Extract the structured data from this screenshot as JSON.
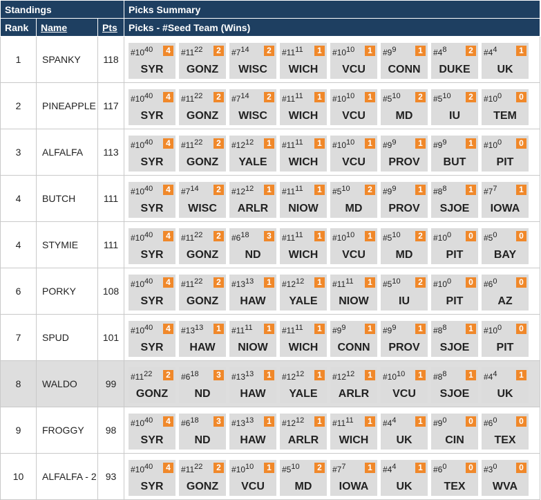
{
  "header": {
    "standings": "Standings",
    "picks_summary": "Picks Summary",
    "rank": "Rank",
    "name": "Name",
    "pts": "Pts",
    "picks_label": "Picks - #Seed Team (Wins)"
  },
  "colors": {
    "header_bg": "#1e3f61",
    "badge": "#f0882a",
    "tile": "#dcdcdc",
    "highlight_row": "#dedede"
  },
  "rows": [
    {
      "rank": "1",
      "name": "SPANKY",
      "pts": "118",
      "picks": [
        {
          "seed": "#10",
          "total": "40",
          "wins": "4",
          "team": "SYR"
        },
        {
          "seed": "#11",
          "total": "22",
          "wins": "2",
          "team": "GONZ"
        },
        {
          "seed": "#7",
          "total": "14",
          "wins": "2",
          "team": "WISC"
        },
        {
          "seed": "#11",
          "total": "11",
          "wins": "1",
          "team": "WICH"
        },
        {
          "seed": "#10",
          "total": "10",
          "wins": "1",
          "team": "VCU"
        },
        {
          "seed": "#9",
          "total": "9",
          "wins": "1",
          "team": "CONN"
        },
        {
          "seed": "#4",
          "total": "8",
          "wins": "2",
          "team": "DUKE"
        },
        {
          "seed": "#4",
          "total": "4",
          "wins": "1",
          "team": "UK"
        }
      ]
    },
    {
      "rank": "2",
      "name": "PINEAPPLE",
      "pts": "117",
      "picks": [
        {
          "seed": "#10",
          "total": "40",
          "wins": "4",
          "team": "SYR"
        },
        {
          "seed": "#11",
          "total": "22",
          "wins": "2",
          "team": "GONZ"
        },
        {
          "seed": "#7",
          "total": "14",
          "wins": "2",
          "team": "WISC"
        },
        {
          "seed": "#11",
          "total": "11",
          "wins": "1",
          "team": "WICH"
        },
        {
          "seed": "#10",
          "total": "10",
          "wins": "1",
          "team": "VCU"
        },
        {
          "seed": "#5",
          "total": "10",
          "wins": "2",
          "team": "MD"
        },
        {
          "seed": "#5",
          "total": "10",
          "wins": "2",
          "team": "IU"
        },
        {
          "seed": "#10",
          "total": "0",
          "wins": "0",
          "team": "TEM"
        }
      ]
    },
    {
      "rank": "3",
      "name": "ALFALFA",
      "pts": "113",
      "picks": [
        {
          "seed": "#10",
          "total": "40",
          "wins": "4",
          "team": "SYR"
        },
        {
          "seed": "#11",
          "total": "22",
          "wins": "2",
          "team": "GONZ"
        },
        {
          "seed": "#12",
          "total": "12",
          "wins": "1",
          "team": "YALE"
        },
        {
          "seed": "#11",
          "total": "11",
          "wins": "1",
          "team": "WICH"
        },
        {
          "seed": "#10",
          "total": "10",
          "wins": "1",
          "team": "VCU"
        },
        {
          "seed": "#9",
          "total": "9",
          "wins": "1",
          "team": "PROV"
        },
        {
          "seed": "#9",
          "total": "9",
          "wins": "1",
          "team": "BUT"
        },
        {
          "seed": "#10",
          "total": "0",
          "wins": "0",
          "team": "PIT"
        }
      ]
    },
    {
      "rank": "4",
      "name": "BUTCH",
      "pts": "111",
      "picks": [
        {
          "seed": "#10",
          "total": "40",
          "wins": "4",
          "team": "SYR"
        },
        {
          "seed": "#7",
          "total": "14",
          "wins": "2",
          "team": "WISC"
        },
        {
          "seed": "#12",
          "total": "12",
          "wins": "1",
          "team": "ARLR"
        },
        {
          "seed": "#11",
          "total": "11",
          "wins": "1",
          "team": "NIOW"
        },
        {
          "seed": "#5",
          "total": "10",
          "wins": "2",
          "team": "MD"
        },
        {
          "seed": "#9",
          "total": "9",
          "wins": "1",
          "team": "PROV"
        },
        {
          "seed": "#8",
          "total": "8",
          "wins": "1",
          "team": "SJOE"
        },
        {
          "seed": "#7",
          "total": "7",
          "wins": "1",
          "team": "IOWA"
        }
      ]
    },
    {
      "rank": "4",
      "name": "STYMIE",
      "pts": "111",
      "picks": [
        {
          "seed": "#10",
          "total": "40",
          "wins": "4",
          "team": "SYR"
        },
        {
          "seed": "#11",
          "total": "22",
          "wins": "2",
          "team": "GONZ"
        },
        {
          "seed": "#6",
          "total": "18",
          "wins": "3",
          "team": "ND"
        },
        {
          "seed": "#11",
          "total": "11",
          "wins": "1",
          "team": "WICH"
        },
        {
          "seed": "#10",
          "total": "10",
          "wins": "1",
          "team": "VCU"
        },
        {
          "seed": "#5",
          "total": "10",
          "wins": "2",
          "team": "MD"
        },
        {
          "seed": "#10",
          "total": "0",
          "wins": "0",
          "team": "PIT"
        },
        {
          "seed": "#5",
          "total": "0",
          "wins": "0",
          "team": "BAY"
        }
      ]
    },
    {
      "rank": "6",
      "name": "PORKY",
      "pts": "108",
      "picks": [
        {
          "seed": "#10",
          "total": "40",
          "wins": "4",
          "team": "SYR"
        },
        {
          "seed": "#11",
          "total": "22",
          "wins": "2",
          "team": "GONZ"
        },
        {
          "seed": "#13",
          "total": "13",
          "wins": "1",
          "team": "HAW"
        },
        {
          "seed": "#12",
          "total": "12",
          "wins": "1",
          "team": "YALE"
        },
        {
          "seed": "#11",
          "total": "11",
          "wins": "1",
          "team": "NIOW"
        },
        {
          "seed": "#5",
          "total": "10",
          "wins": "2",
          "team": "IU"
        },
        {
          "seed": "#10",
          "total": "0",
          "wins": "0",
          "team": "PIT"
        },
        {
          "seed": "#6",
          "total": "0",
          "wins": "0",
          "team": "AZ"
        }
      ]
    },
    {
      "rank": "7",
      "name": "SPUD",
      "pts": "101",
      "picks": [
        {
          "seed": "#10",
          "total": "40",
          "wins": "4",
          "team": "SYR"
        },
        {
          "seed": "#13",
          "total": "13",
          "wins": "1",
          "team": "HAW"
        },
        {
          "seed": "#11",
          "total": "11",
          "wins": "1",
          "team": "NIOW"
        },
        {
          "seed": "#11",
          "total": "11",
          "wins": "1",
          "team": "WICH"
        },
        {
          "seed": "#9",
          "total": "9",
          "wins": "1",
          "team": "CONN"
        },
        {
          "seed": "#9",
          "total": "9",
          "wins": "1",
          "team": "PROV"
        },
        {
          "seed": "#8",
          "total": "8",
          "wins": "1",
          "team": "SJOE"
        },
        {
          "seed": "#10",
          "total": "0",
          "wins": "0",
          "team": "PIT"
        }
      ]
    },
    {
      "rank": "8",
      "name": "WALDO",
      "pts": "99",
      "highlight": true,
      "picks": [
        {
          "seed": "#11",
          "total": "22",
          "wins": "2",
          "team": "GONZ"
        },
        {
          "seed": "#6",
          "total": "18",
          "wins": "3",
          "team": "ND"
        },
        {
          "seed": "#13",
          "total": "13",
          "wins": "1",
          "team": "HAW"
        },
        {
          "seed": "#12",
          "total": "12",
          "wins": "1",
          "team": "YALE"
        },
        {
          "seed": "#12",
          "total": "12",
          "wins": "1",
          "team": "ARLR"
        },
        {
          "seed": "#10",
          "total": "10",
          "wins": "1",
          "team": "VCU"
        },
        {
          "seed": "#8",
          "total": "8",
          "wins": "1",
          "team": "SJOE"
        },
        {
          "seed": "#4",
          "total": "4",
          "wins": "1",
          "team": "UK"
        }
      ]
    },
    {
      "rank": "9",
      "name": "FROGGY",
      "pts": "98",
      "picks": [
        {
          "seed": "#10",
          "total": "40",
          "wins": "4",
          "team": "SYR"
        },
        {
          "seed": "#6",
          "total": "18",
          "wins": "3",
          "team": "ND"
        },
        {
          "seed": "#13",
          "total": "13",
          "wins": "1",
          "team": "HAW"
        },
        {
          "seed": "#12",
          "total": "12",
          "wins": "1",
          "team": "ARLR"
        },
        {
          "seed": "#11",
          "total": "11",
          "wins": "1",
          "team": "WICH"
        },
        {
          "seed": "#4",
          "total": "4",
          "wins": "1",
          "team": "UK"
        },
        {
          "seed": "#9",
          "total": "0",
          "wins": "0",
          "team": "CIN"
        },
        {
          "seed": "#6",
          "total": "0",
          "wins": "0",
          "team": "TEX"
        }
      ]
    },
    {
      "rank": "10",
      "name": "ALFALFA - 2",
      "pts": "93",
      "picks": [
        {
          "seed": "#10",
          "total": "40",
          "wins": "4",
          "team": "SYR"
        },
        {
          "seed": "#11",
          "total": "22",
          "wins": "2",
          "team": "GONZ"
        },
        {
          "seed": "#10",
          "total": "10",
          "wins": "1",
          "team": "VCU"
        },
        {
          "seed": "#5",
          "total": "10",
          "wins": "2",
          "team": "MD"
        },
        {
          "seed": "#7",
          "total": "7",
          "wins": "1",
          "team": "IOWA"
        },
        {
          "seed": "#4",
          "total": "4",
          "wins": "1",
          "team": "UK"
        },
        {
          "seed": "#6",
          "total": "0",
          "wins": "0",
          "team": "TEX"
        },
        {
          "seed": "#3",
          "total": "0",
          "wins": "0",
          "team": "WVA"
        }
      ]
    }
  ]
}
